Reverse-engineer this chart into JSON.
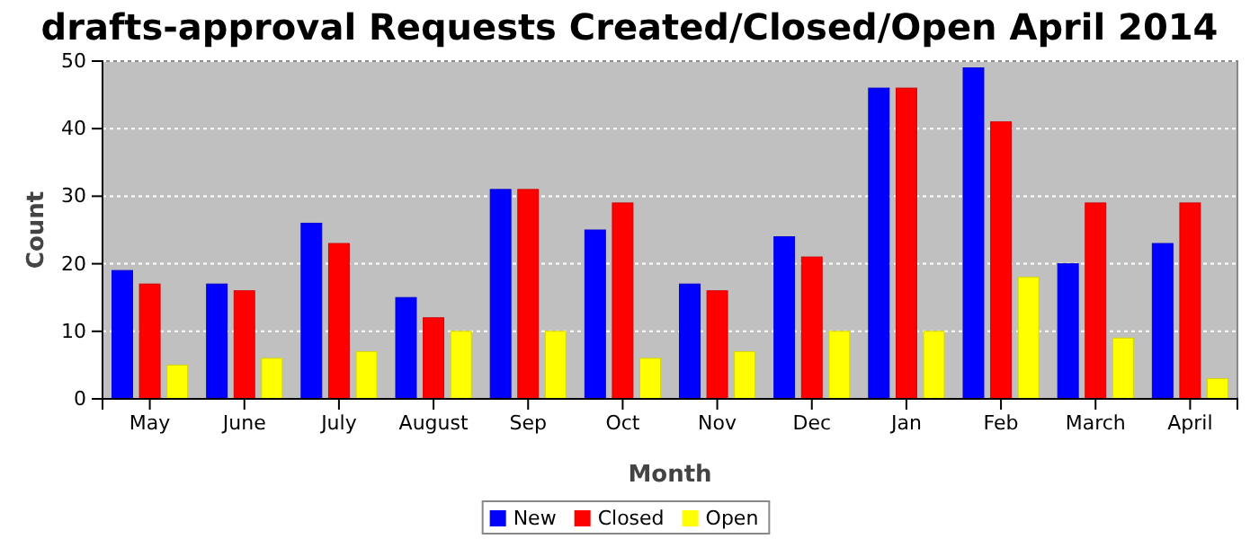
{
  "chart_data": {
    "type": "bar",
    "title": "drafts-approval Requests Created/Closed/Open April 2014",
    "xlabel": "Month",
    "ylabel": "Count",
    "categories": [
      "May",
      "June",
      "July",
      "August",
      "Sep",
      "Oct",
      "Nov",
      "Dec",
      "Jan",
      "Feb",
      "March",
      "April"
    ],
    "series": [
      {
        "name": "New",
        "color": "#0000ff",
        "values": [
          19,
          17,
          26,
          15,
          31,
          25,
          17,
          24,
          46,
          49,
          20,
          23
        ]
      },
      {
        "name": "Closed",
        "color": "#ff0000",
        "values": [
          17,
          16,
          23,
          12,
          31,
          29,
          16,
          21,
          46,
          41,
          29,
          29
        ]
      },
      {
        "name": "Open",
        "color": "#ffff00",
        "values": [
          5,
          6,
          7,
          10,
          10,
          6,
          7,
          10,
          10,
          18,
          9,
          3
        ]
      }
    ],
    "ylim": [
      0,
      50
    ],
    "yticks": [
      0,
      10,
      20,
      30,
      40,
      50
    ],
    "grid": "y",
    "legend": "bottom"
  }
}
